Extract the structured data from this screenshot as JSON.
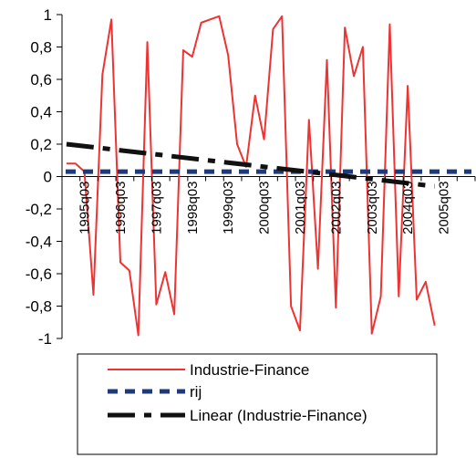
{
  "chart_data": {
    "type": "line",
    "ylim": [
      -1,
      1
    ],
    "y_ticks": [
      "1",
      "0,8",
      "0,6",
      "0,4",
      "0,2",
      "0",
      "-0,2",
      "-0,4",
      "-0,6",
      "-0,8",
      "-1"
    ],
    "y_tick_values": [
      1,
      0.8,
      0.6,
      0.4,
      0.2,
      0,
      -0.2,
      -0.4,
      -0.6,
      -0.8,
      -1
    ],
    "x_tick_labels": [
      "1995q03",
      "1996q03",
      "1997q03",
      "1998q03",
      "1999q03",
      "2000q03",
      "2001q03",
      "2002q03",
      "2003q03",
      "2004q03",
      "2005q03"
    ],
    "x_tick_positions": [
      2,
      6,
      10,
      14,
      18,
      22,
      26,
      30,
      34,
      38,
      42
    ],
    "x_count": 46,
    "grid": false,
    "legend_position": "bottom",
    "series": [
      {
        "name": "Industrie-Finance",
        "style": "solid",
        "color": "#ee3333",
        "values": [
          0.08,
          0.08,
          0.03,
          -0.73,
          0.63,
          0.97,
          -0.53,
          -0.58,
          -0.98,
          0.83,
          -0.79,
          -0.59,
          -0.85,
          0.78,
          0.74,
          0.95,
          0.97,
          0.99,
          0.75,
          0.2,
          0.06,
          0.5,
          0.23,
          0.91,
          0.99,
          -0.8,
          -0.95,
          0.35,
          -0.57,
          0.72,
          -0.81,
          0.92,
          0.62,
          0.8,
          -0.97,
          -0.74,
          0.94,
          -0.74,
          0.56,
          -0.76,
          -0.65,
          -0.92
        ]
      },
      {
        "name": "rij",
        "style": "dashed",
        "color": "#1f3a7a",
        "values": [
          0.03,
          0.03
        ]
      },
      {
        "name": "Linear (Industrie-Finance)",
        "style": "dashed",
        "color": "#111111",
        "values": [
          0.2,
          -0.06
        ]
      }
    ]
  }
}
